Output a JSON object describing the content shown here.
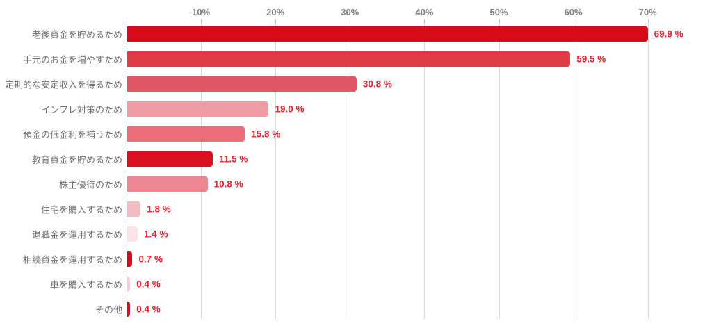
{
  "chart_data": {
    "type": "bar",
    "orientation": "horizontal",
    "title": "",
    "categories": [
      "老後資金を貯めるため",
      "手元のお金を増やすため",
      "定期的な安定収入を得るため",
      "インフレ対策のため",
      "預金の低金利を補うため",
      "教育資金を貯めるため",
      "株主優待のため",
      "住宅を購入するため",
      "退職金を運用するため",
      "相続資金を運用するため",
      "車を購入するため",
      "その他"
    ],
    "values": [
      69.9,
      59.5,
      30.8,
      19.0,
      15.8,
      11.5,
      10.8,
      1.8,
      1.4,
      0.7,
      0.4,
      0.4
    ],
    "value_labels": [
      "69.9 %",
      "59.5 %",
      "30.8 %",
      "19.0 %",
      "15.8 %",
      "11.5 %",
      "10.8 %",
      "1.8 %",
      "1.4 %",
      "0.7 %",
      "0.4 %",
      "0.4 %"
    ],
    "bar_colors": [
      "#d60c1a",
      "#e13b48",
      "#e05863",
      "#f19ca5",
      "#e96e79",
      "#d8101f",
      "#ec8791",
      "#f2bcc3",
      "#fbe3e6",
      "#d40a1b",
      "#f6ced3",
      "#d40e1e"
    ],
    "x_axis": {
      "unit": "%",
      "min": 0,
      "max": 70,
      "tick_values": [
        10,
        20,
        30,
        40,
        50,
        60,
        70
      ],
      "tick_labels": [
        "10%",
        "20%",
        "30%",
        "40%",
        "50%",
        "60%",
        "70%"
      ],
      "grid": true,
      "position": "top"
    },
    "legend": false
  },
  "style": {
    "background": "#ffffff",
    "axis_line_color": "#b9cbdf",
    "gridline_color": "#d9d9d9",
    "tick_mark_color": "#bdbdbd",
    "x_tick_label_color": "#808080",
    "category_label_color": "#6d6d6d",
    "value_label_color": "#e0242f"
  }
}
